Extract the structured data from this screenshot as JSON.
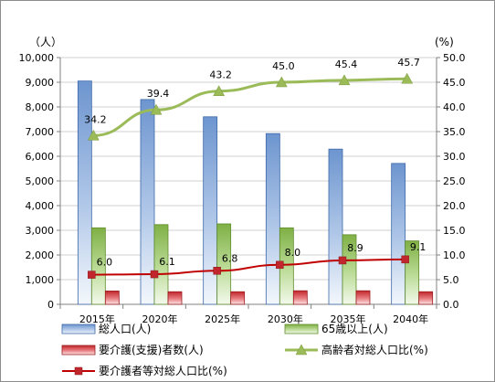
{
  "chart_data": {
    "type": "bar",
    "categories": [
      "2015年",
      "2020年",
      "2025年",
      "2030年",
      "2035年",
      "2040年"
    ],
    "left_axis": {
      "unit": "（人）",
      "ylim": [
        0,
        10000
      ],
      "ticks": [
        0,
        1000,
        2000,
        3000,
        4000,
        5000,
        6000,
        7000,
        8000,
        9000,
        10000
      ],
      "tick_labels": [
        "0",
        "1,000",
        "2,000",
        "3,000",
        "4,000",
        "5,000",
        "6,000",
        "7,000",
        "8,000",
        "9,000",
        "10,000"
      ]
    },
    "right_axis": {
      "unit": "(%)",
      "ylim": [
        0,
        50
      ],
      "ticks": [
        0,
        5,
        10,
        15,
        20,
        25,
        30,
        35,
        40,
        45,
        50
      ],
      "tick_labels": [
        "0.0",
        "5.0",
        "10.0",
        "15.0",
        "20.0",
        "25.0",
        "30.0",
        "35.0",
        "40.0",
        "45.0",
        "50.0"
      ]
    },
    "bar_series": [
      {
        "name": "総人口(人)",
        "values": [
          9050,
          8300,
          7600,
          6920,
          6290,
          5710
        ],
        "color": "#4f81bd"
      },
      {
        "name": "65歳以上(人)",
        "values": [
          3100,
          3230,
          3260,
          3100,
          2820,
          2570
        ],
        "color": "#9bbb59"
      },
      {
        "name": "要介護(支援)者数(人)",
        "values": [
          540,
          510,
          510,
          550,
          550,
          510
        ],
        "color": "#c0504d"
      }
    ],
    "line_series": [
      {
        "name": "高齢者対総人口比(%)",
        "values": [
          34.2,
          39.4,
          43.2,
          45.0,
          45.4,
          45.7
        ],
        "labels": [
          "34.2",
          "39.4",
          "43.2",
          "45.0",
          "45.4",
          "45.7"
        ],
        "color": "#9bbb59"
      },
      {
        "name": "要介護者等対総人口比(%)",
        "values": [
          6.0,
          6.1,
          6.8,
          8.0,
          8.9,
          9.1
        ],
        "labels": [
          "6.0",
          "6.1",
          "6.8",
          "8.0",
          "8.9",
          "9.1"
        ],
        "color": "#c00000"
      }
    ],
    "grid": true,
    "legend_position": "bottom"
  }
}
